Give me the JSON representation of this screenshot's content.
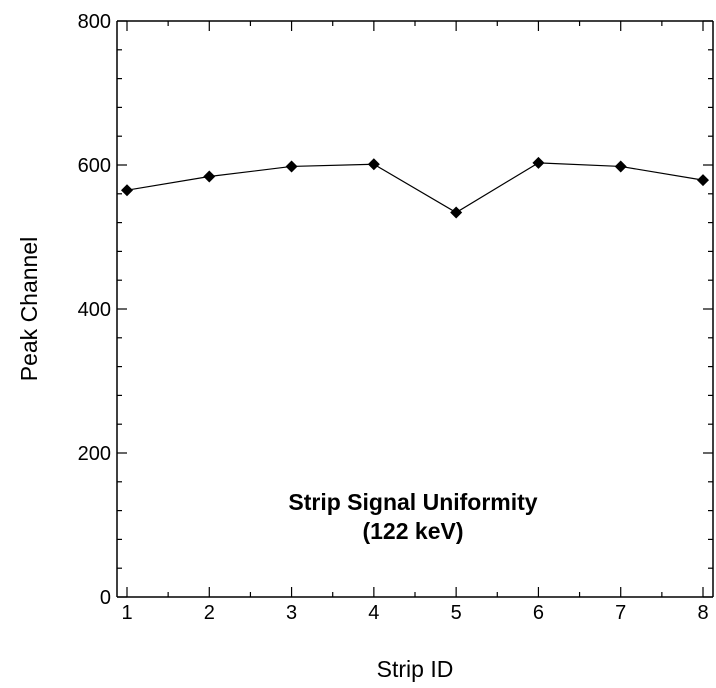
{
  "chart_data": {
    "type": "line",
    "xlabel": "Strip ID",
    "ylabel": "Peak Channel",
    "xlim": [
      1,
      8
    ],
    "ylim": [
      0,
      800
    ],
    "x_ticks": [
      1,
      2,
      3,
      4,
      5,
      6,
      7,
      8
    ],
    "y_ticks": [
      0,
      200,
      400,
      600,
      800
    ],
    "grid": false,
    "marker": "diamond",
    "line_color": "#000000",
    "x": [
      1,
      2,
      3,
      4,
      5,
      6,
      7,
      8
    ],
    "series": [
      {
        "values": [
          565,
          584,
          598,
          601,
          534,
          603,
          598,
          579
        ]
      }
    ],
    "annotation": {
      "line1": "Strip Signal Uniformity",
      "line2": "(122 keV)"
    }
  }
}
